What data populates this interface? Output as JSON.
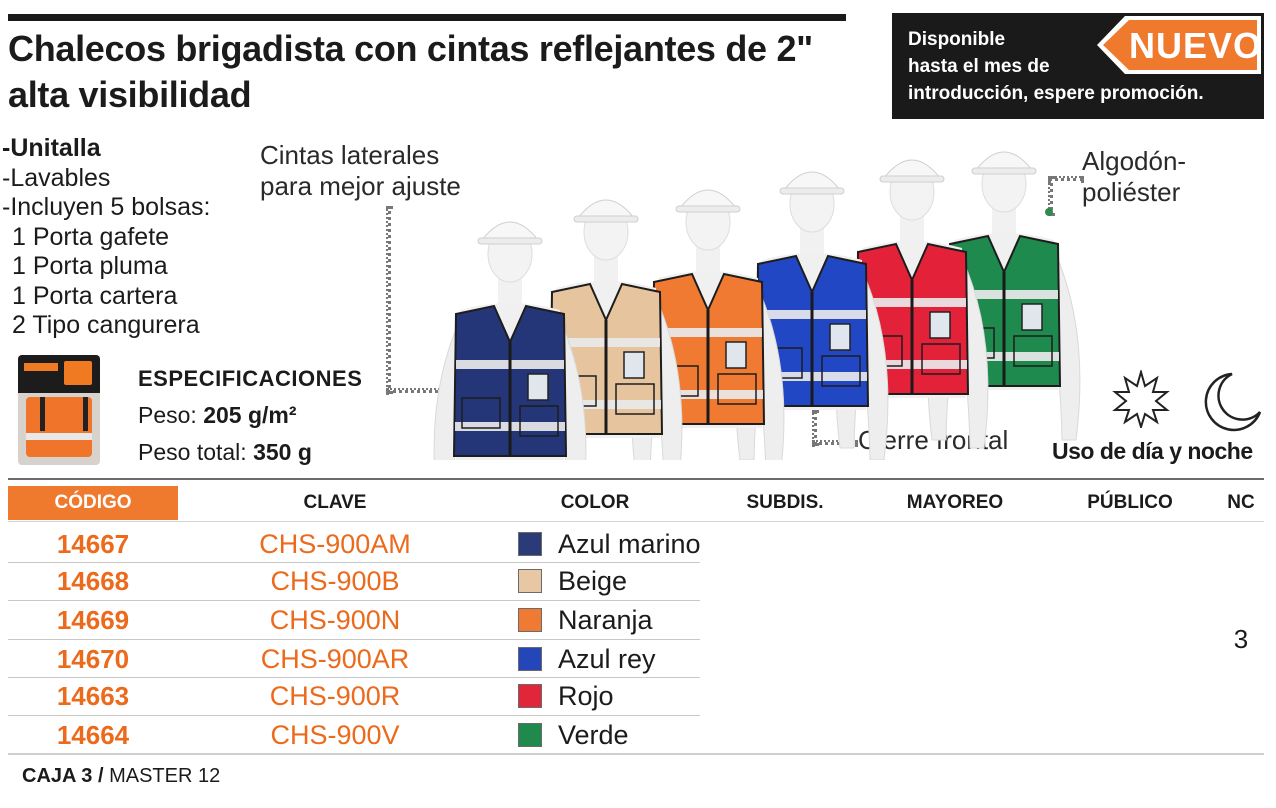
{
  "title": {
    "line1": "Chalecos brigadista con cintas reflejantes de 2\"",
    "line2": "alta visibilidad"
  },
  "promo": {
    "line1": "Disponible",
    "line2": "hasta el mes de",
    "line3": "introducción, espere promoción.",
    "badge": "NUEVO",
    "colors": {
      "background": "#1a1a1a",
      "badge": "#ef7a2e"
    }
  },
  "features": {
    "items": [
      "Unitalla",
      "Lavables",
      "Incluyen 5 bolsas:"
    ],
    "pockets": [
      "1 Porta gafete",
      "1 Porta pluma",
      "1 Porta cartera",
      "2 Tipo cangurera"
    ]
  },
  "specs": {
    "heading": "ESPECIFICACIONES",
    "weight_label": "Peso:",
    "weight_value": "205 g/m²",
    "total_label": "Peso total:",
    "total_value": "350 g"
  },
  "callouts": {
    "lateral_line1": "Cintas laterales",
    "lateral_line2": "para mejor ajuste",
    "material_line1": "Algodón-",
    "material_line2": "poliéster",
    "closure": "Cierre frontal",
    "day_night": "Uso de día y noche"
  },
  "table": {
    "headers": {
      "codigo": "CÓDIGO",
      "clave": "CLAVE",
      "color": "COLOR",
      "subdis": "SUBDIS.",
      "mayoreo": "MAYOREO",
      "publico": "PÚBLICO",
      "nc": "NC"
    },
    "rows": [
      {
        "codigo": "14667",
        "clave": "CHS-900AM",
        "color": "Azul marino",
        "swatch": "#2b3b78"
      },
      {
        "codigo": "14668",
        "clave": "CHS-900B",
        "color": "Beige",
        "swatch": "#e8c8a4"
      },
      {
        "codigo": "14669",
        "clave": "CHS-900N",
        "color": "Naranja",
        "swatch": "#ee7a33"
      },
      {
        "codigo": "14670",
        "clave": "CHS-900AR",
        "color": "Azul rey",
        "swatch": "#2446b8"
      },
      {
        "codigo": "14663",
        "clave": "CHS-900R",
        "color": "Rojo",
        "swatch": "#e2263a"
      },
      {
        "codigo": "14664",
        "clave": "CHS-900V",
        "color": "Verde",
        "swatch": "#1f8a4c"
      }
    ],
    "nc_value": "3",
    "accent": "#ec6a1c"
  },
  "footer": {
    "caja": "CAJA 3 /",
    "master": "MASTER 12"
  },
  "vests": [
    {
      "color": "Azul marino",
      "hex": "#243678"
    },
    {
      "color": "Beige",
      "hex": "#e6c49e"
    },
    {
      "color": "Naranja",
      "hex": "#f07a32"
    },
    {
      "color": "Azul rey",
      "hex": "#2247c4"
    },
    {
      "color": "Rojo",
      "hex": "#e3223a"
    },
    {
      "color": "Verde",
      "hex": "#1e8a4d"
    }
  ]
}
